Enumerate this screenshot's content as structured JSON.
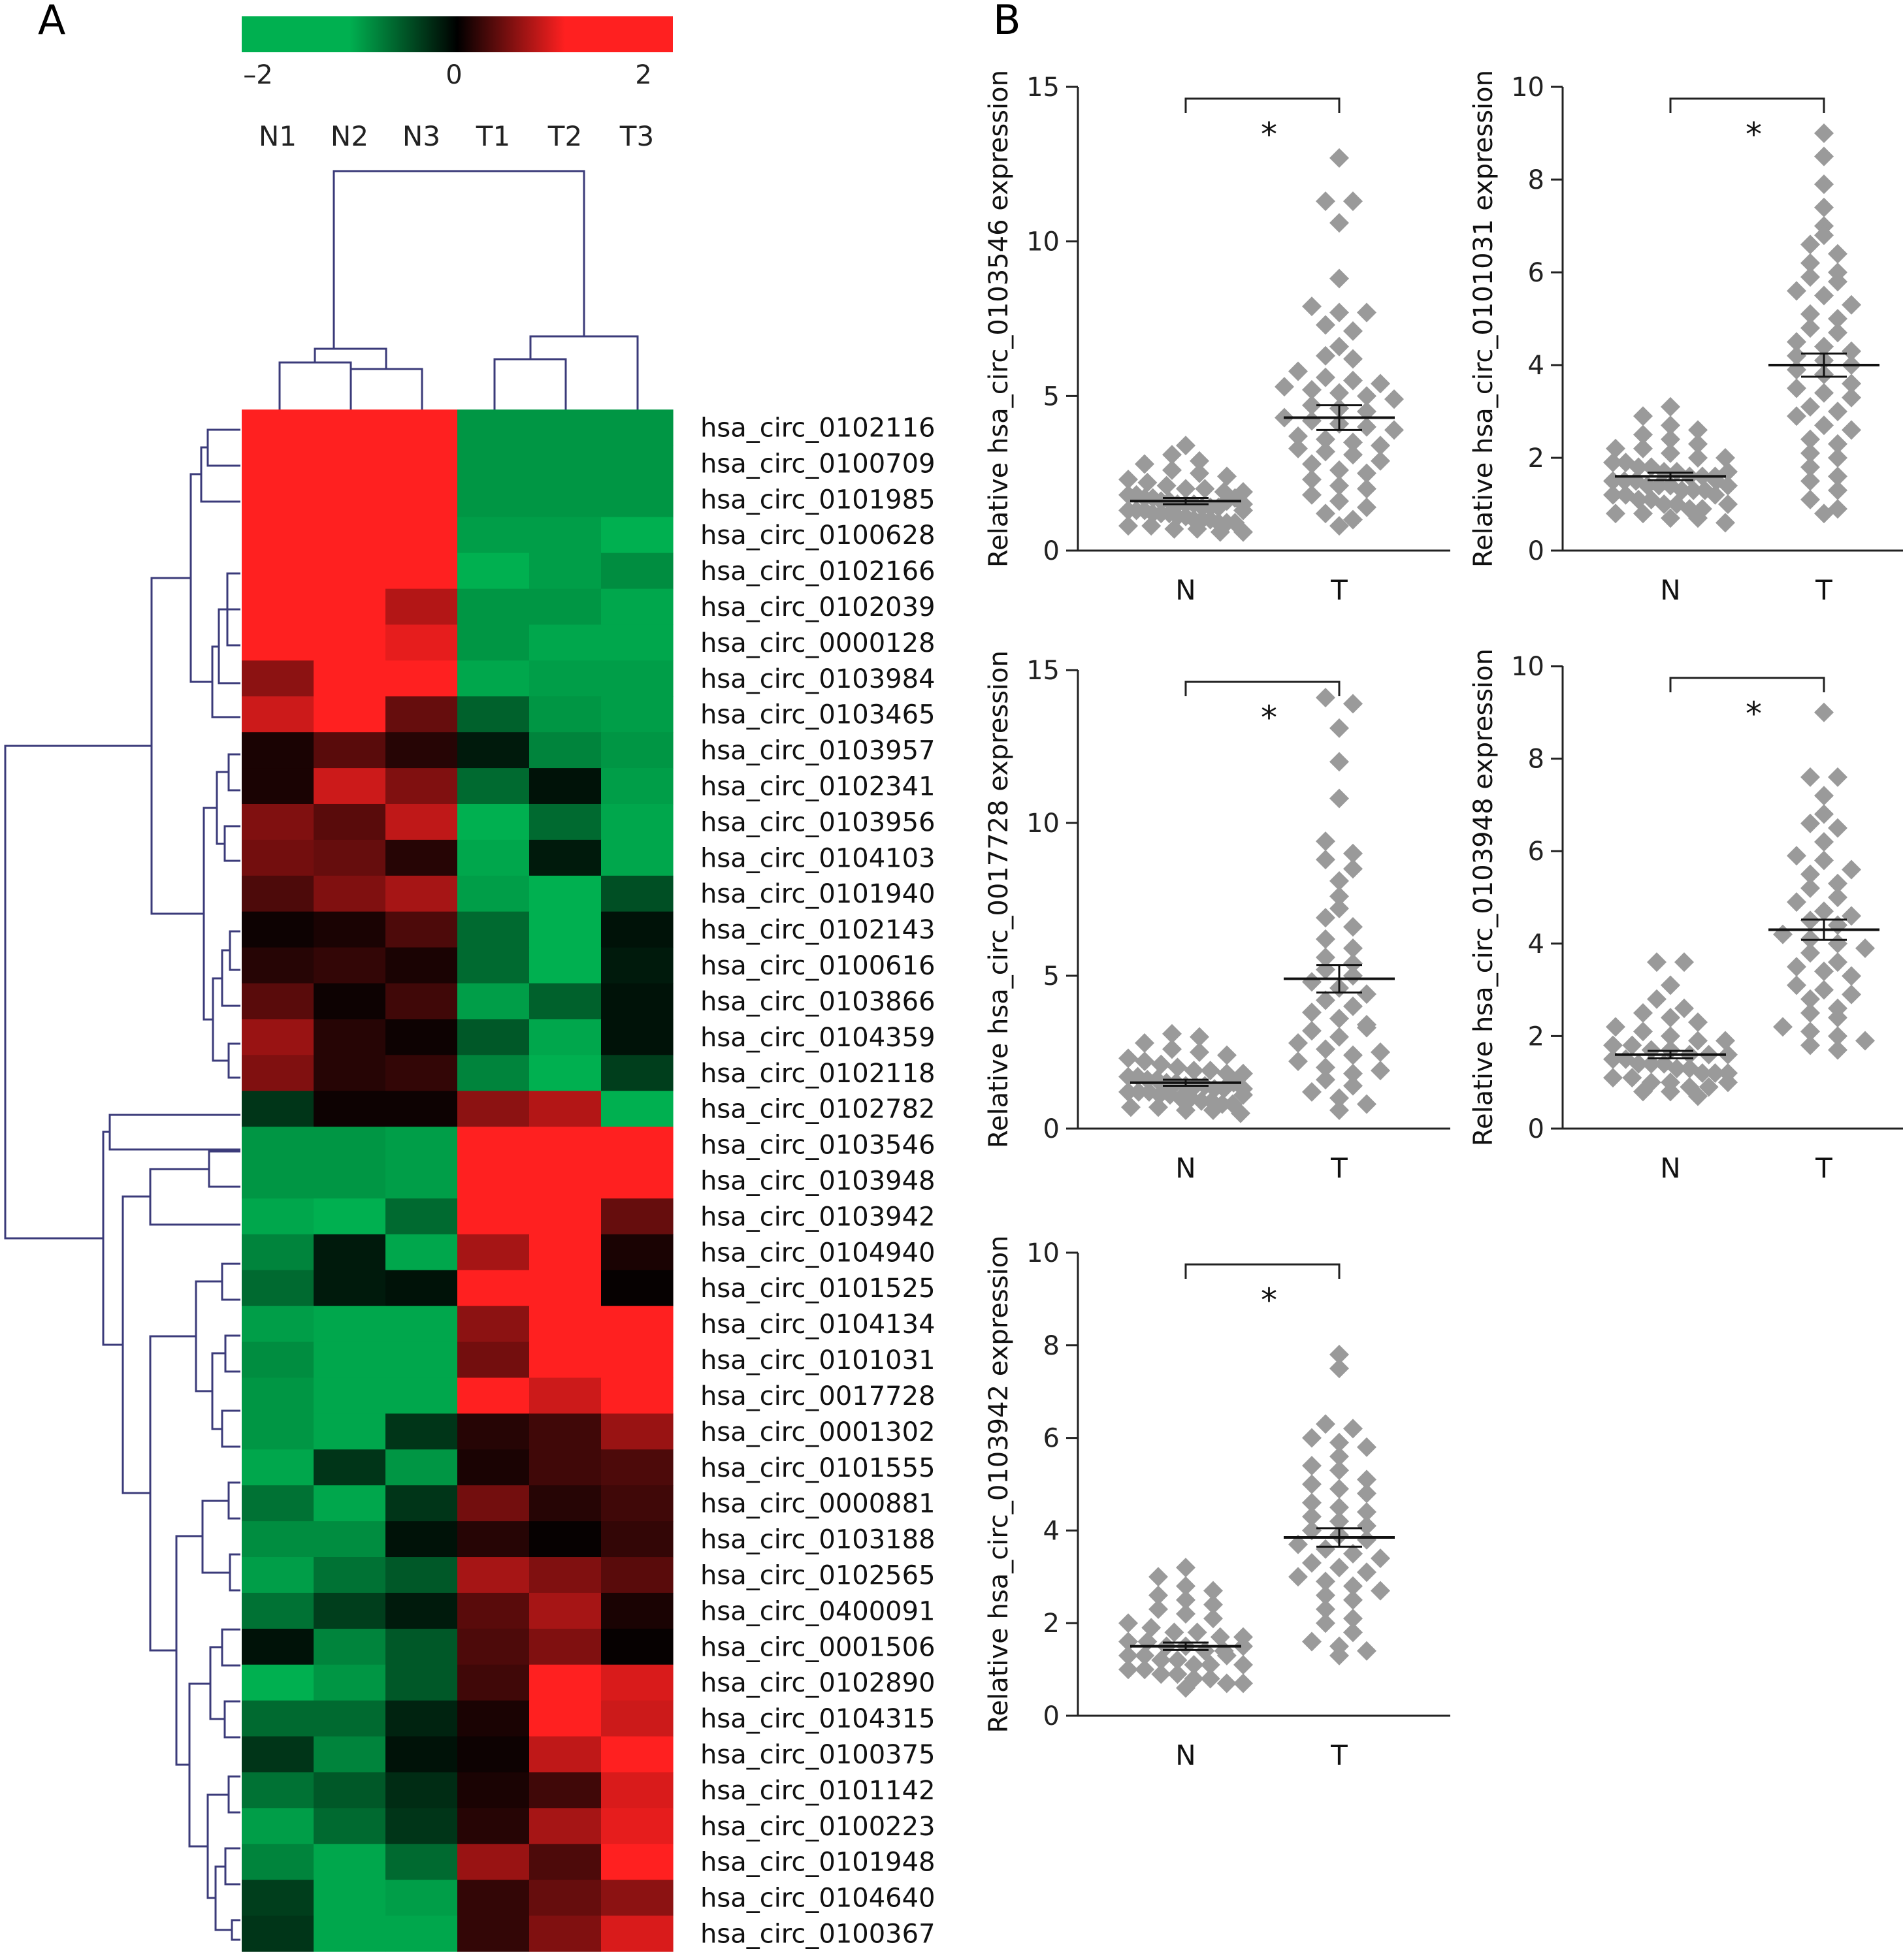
{
  "panels": {
    "a_label": "A",
    "b_label": "B"
  },
  "colors": {
    "low": "#00b050",
    "mid": "#000000",
    "high": "#ff2020",
    "dendrogram": "#3b3b7a",
    "points": "#9a9a9a"
  },
  "chart_data": [
    {
      "type": "heatmap",
      "panel": "A",
      "colorbar": {
        "range": [
          -2,
          2
        ],
        "ticks": [
          "–2",
          "0",
          "2"
        ]
      },
      "columns": [
        "N1",
        "N2",
        "N3",
        "T1",
        "T2",
        "T3"
      ],
      "rows": [
        "hsa_circ_0102116",
        "hsa_circ_0100709",
        "hsa_circ_0101985",
        "hsa_circ_0100628",
        "hsa_circ_0102166",
        "hsa_circ_0102039",
        "hsa_circ_0000128",
        "hsa_circ_0103984",
        "hsa_circ_0103465",
        "hsa_circ_0103957",
        "hsa_circ_0102341",
        "hsa_circ_0103956",
        "hsa_circ_0104103",
        "hsa_circ_0101940",
        "hsa_circ_0102143",
        "hsa_circ_0100616",
        "hsa_circ_0103866",
        "hsa_circ_0104359",
        "hsa_circ_0102118",
        "hsa_circ_0102782",
        "hsa_circ_0103546",
        "hsa_circ_0103948",
        "hsa_circ_0103942",
        "hsa_circ_0104940",
        "hsa_circ_0101525",
        "hsa_circ_0104134",
        "hsa_circ_0101031",
        "hsa_circ_0017728",
        "hsa_circ_0001302",
        "hsa_circ_0101555",
        "hsa_circ_0000881",
        "hsa_circ_0103188",
        "hsa_circ_0102565",
        "hsa_circ_0400091",
        "hsa_circ_0001506",
        "hsa_circ_0102890",
        "hsa_circ_0104315",
        "hsa_circ_0100375",
        "hsa_circ_0101142",
        "hsa_circ_0100223",
        "hsa_circ_0101948",
        "hsa_circ_0104640",
        "hsa_circ_0100367"
      ],
      "values": [
        [
          2,
          2,
          2,
          -1.7,
          -1.7,
          -1.7
        ],
        [
          2,
          2,
          2,
          -1.7,
          -1.7,
          -1.7
        ],
        [
          2,
          2,
          2,
          -1.7,
          -1.7,
          -1.7
        ],
        [
          2,
          2,
          2,
          -1.8,
          -1.8,
          -2
        ],
        [
          2,
          2,
          2,
          -2,
          -1.8,
          -1.6
        ],
        [
          2,
          2,
          1.4,
          -1.7,
          -1.7,
          -1.9
        ],
        [
          2,
          2,
          1.8,
          -1.7,
          -1.9,
          -1.9
        ],
        [
          1.1,
          2,
          2,
          -1.9,
          -1.8,
          -1.8
        ],
        [
          1.6,
          2,
          0.8,
          -1.1,
          -1.7,
          -1.8
        ],
        [
          0.2,
          0.7,
          0.3,
          -0.3,
          -1.5,
          -1.7
        ],
        [
          0.2,
          1.6,
          1,
          -1.2,
          -0.2,
          -1.8
        ],
        [
          1,
          0.7,
          1.5,
          -2,
          -1.2,
          -1.9
        ],
        [
          0.9,
          0.8,
          0.3,
          -1.9,
          -0.3,
          -1.9
        ],
        [
          0.6,
          1,
          1.3,
          -1.8,
          -2,
          -0.9
        ],
        [
          0.1,
          0.2,
          0.6,
          -1.2,
          -2,
          -0.2
        ],
        [
          0.3,
          0.4,
          0.2,
          -1.2,
          -2,
          -0.3
        ],
        [
          0.7,
          0.1,
          0.5,
          -1.8,
          -1.1,
          -0.2
        ],
        [
          1.2,
          0.3,
          0.1,
          -1,
          -1.9,
          -0.2
        ],
        [
          1,
          0.3,
          0.4,
          -1.5,
          -2,
          -0.7
        ],
        [
          -0.6,
          0.1,
          0.1,
          1.1,
          1.4,
          -2
        ],
        [
          -1.7,
          -1.7,
          -1.8,
          2,
          2,
          2
        ],
        [
          -1.7,
          -1.7,
          -1.8,
          2,
          2,
          2
        ],
        [
          -1.9,
          -2,
          -1.2,
          2,
          2,
          0.8
        ],
        [
          -1.5,
          -0.3,
          -1.9,
          1.3,
          2,
          0.2
        ],
        [
          -1.2,
          -0.3,
          -0.2,
          2,
          2,
          0.05
        ],
        [
          -1.8,
          -1.9,
          -1.9,
          1.1,
          2,
          2
        ],
        [
          -1.6,
          -1.9,
          -1.9,
          0.9,
          2,
          2
        ],
        [
          -1.7,
          -1.9,
          -1.9,
          2,
          1.6,
          2
        ],
        [
          -1.7,
          -1.9,
          -0.6,
          0.3,
          0.5,
          1.2
        ],
        [
          -1.9,
          -0.6,
          -1.7,
          0.2,
          0.5,
          0.6
        ],
        [
          -1.3,
          -1.9,
          -0.6,
          0.9,
          0.3,
          0.5
        ],
        [
          -1.6,
          -1.6,
          -0.2,
          0.3,
          0.05,
          0.4
        ],
        [
          -1.8,
          -1.3,
          -1,
          1.3,
          1,
          0.7
        ],
        [
          -1.3,
          -0.7,
          -0.3,
          0.7,
          1.3,
          0.2
        ],
        [
          -0.2,
          -1.5,
          -1,
          0.6,
          1,
          0.05
        ],
        [
          -2,
          -1.7,
          -1,
          0.5,
          2,
          1.7
        ],
        [
          -1.2,
          -1.2,
          -0.4,
          0.2,
          2,
          1.6
        ],
        [
          -0.6,
          -1.5,
          -0.2,
          0.1,
          1.5,
          2
        ],
        [
          -1.3,
          -1,
          -0.5,
          0.2,
          0.5,
          1.7
        ],
        [
          -1.8,
          -1.2,
          -0.6,
          0.3,
          1.3,
          1.8
        ],
        [
          -1.5,
          -1.9,
          -1.2,
          1.2,
          0.6,
          2
        ],
        [
          -0.7,
          -1.9,
          -1.8,
          0.4,
          0.8,
          1.1
        ],
        [
          -0.6,
          -1.9,
          -1.9,
          0.4,
          1,
          1.7
        ]
      ]
    },
    {
      "type": "scatter",
      "panel": "B",
      "categories": [
        "N",
        "T"
      ],
      "ylabel": "Relative hsa_circ_0103546 expression",
      "ylim": [
        0,
        15
      ],
      "yticks": [
        0,
        5,
        10,
        15
      ],
      "significance": "*",
      "series": [
        {
          "name": "N",
          "mean": 1.6,
          "sem": 0.1,
          "values": [
            3.4,
            3.1,
            2.9,
            2.8,
            2.6,
            2.5,
            2.4,
            2.3,
            2.2,
            2.1,
            2.0,
            2.0,
            1.9,
            1.9,
            1.8,
            1.8,
            1.7,
            1.7,
            1.6,
            1.6,
            1.5,
            1.5,
            1.5,
            1.4,
            1.4,
            1.4,
            1.3,
            1.3,
            1.3,
            1.2,
            1.2,
            1.2,
            1.1,
            1.1,
            1.0,
            1.0,
            1.0,
            0.9,
            0.9,
            0.9,
            0.8,
            0.8,
            0.7,
            0.7,
            0.6,
            0.6,
            1.6,
            1.7,
            1.5,
            1.3
          ]
        },
        {
          "name": "T",
          "mean": 4.3,
          "sem": 0.4,
          "values": [
            12.7,
            11.3,
            11.3,
            10.6,
            8.8,
            7.9,
            7.7,
            7.7,
            7.3,
            7.1,
            6.6,
            6.3,
            6.2,
            5.8,
            5.6,
            5.5,
            5.4,
            5.3,
            5.2,
            5.1,
            5.0,
            4.9,
            4.7,
            4.6,
            4.5,
            4.3,
            4.2,
            4.1,
            4.0,
            3.9,
            3.7,
            3.6,
            3.5,
            3.4,
            3.3,
            3.2,
            3.1,
            2.9,
            2.8,
            2.6,
            2.5,
            2.3,
            2.1,
            2.0,
            1.8,
            1.6,
            1.4,
            1.2,
            1.0,
            0.8
          ]
        }
      ]
    },
    {
      "type": "scatter",
      "panel": "B",
      "categories": [
        "N",
        "T"
      ],
      "ylabel": "Relative hsa_circ_0101031 expression",
      "ylim": [
        0,
        10
      ],
      "yticks": [
        0,
        2,
        4,
        6,
        8,
        10
      ],
      "significance": "*",
      "series": [
        {
          "name": "N",
          "mean": 1.6,
          "sem": 0.08,
          "values": [
            3.1,
            2.9,
            2.7,
            2.6,
            2.5,
            2.4,
            2.3,
            2.2,
            2.2,
            2.1,
            2.0,
            2.0,
            1.9,
            1.9,
            1.8,
            1.8,
            1.7,
            1.7,
            1.6,
            1.6,
            1.6,
            1.5,
            1.5,
            1.5,
            1.4,
            1.4,
            1.4,
            1.3,
            1.3,
            1.3,
            1.2,
            1.2,
            1.1,
            1.1,
            1.0,
            1.0,
            0.9,
            0.9,
            0.8,
            0.8,
            0.7,
            0.7,
            0.6,
            1.7,
            1.5,
            1.4,
            1.2,
            1.0
          ]
        },
        {
          "name": "T",
          "mean": 4.0,
          "sem": 0.25,
          "values": [
            9.0,
            8.5,
            7.9,
            7.4,
            7.0,
            6.8,
            6.6,
            6.4,
            6.2,
            6.0,
            5.9,
            5.8,
            5.6,
            5.5,
            5.3,
            5.1,
            5.0,
            4.8,
            4.7,
            4.5,
            4.4,
            4.3,
            4.2,
            4.1,
            4.0,
            3.9,
            3.8,
            3.6,
            3.5,
            3.4,
            3.3,
            3.1,
            3.0,
            2.9,
            2.7,
            2.6,
            2.4,
            2.3,
            2.1,
            2.0,
            1.8,
            1.6,
            1.5,
            1.3,
            1.1,
            0.9,
            0.8
          ]
        }
      ]
    },
    {
      "type": "scatter",
      "panel": "B",
      "categories": [
        "N",
        "T"
      ],
      "ylabel": "Relative hsa_circ_0017728 expression",
      "ylim": [
        0,
        15
      ],
      "yticks": [
        0,
        5,
        10,
        15
      ],
      "significance": "*",
      "series": [
        {
          "name": "N",
          "mean": 1.5,
          "sem": 0.1,
          "values": [
            3.1,
            3.0,
            2.8,
            2.6,
            2.5,
            2.4,
            2.3,
            2.2,
            2.1,
            2.0,
            1.9,
            1.9,
            1.8,
            1.8,
            1.7,
            1.7,
            1.6,
            1.6,
            1.5,
            1.5,
            1.4,
            1.4,
            1.4,
            1.3,
            1.3,
            1.2,
            1.2,
            1.2,
            1.1,
            1.1,
            1.0,
            1.0,
            0.9,
            0.9,
            0.8,
            0.8,
            0.7,
            0.7,
            0.6,
            0.6,
            0.5,
            1.5,
            1.3,
            1.1
          ]
        },
        {
          "name": "T",
          "mean": 4.9,
          "sem": 0.45,
          "values": [
            14.1,
            13.9,
            13.1,
            12.0,
            10.8,
            9.4,
            9.0,
            8.8,
            8.5,
            8.1,
            7.6,
            7.2,
            6.9,
            6.6,
            6.2,
            5.9,
            5.6,
            5.4,
            5.2,
            5.0,
            4.8,
            4.6,
            4.4,
            4.2,
            4.0,
            3.8,
            3.6,
            3.4,
            3.2,
            3.0,
            2.8,
            2.6,
            2.4,
            2.2,
            2.0,
            1.8,
            1.6,
            1.4,
            1.2,
            1.0,
            0.8,
            0.6,
            3.3,
            2.5,
            1.9
          ]
        }
      ]
    },
    {
      "type": "scatter",
      "panel": "B",
      "categories": [
        "N",
        "T"
      ],
      "ylabel": "Relative hsa_circ_0103948 expression",
      "ylim": [
        0,
        10
      ],
      "yticks": [
        0,
        2,
        4,
        6,
        8,
        10
      ],
      "significance": "*",
      "series": [
        {
          "name": "N",
          "mean": 1.6,
          "sem": 0.08,
          "values": [
            3.6,
            3.6,
            3.1,
            2.8,
            2.6,
            2.5,
            2.4,
            2.3,
            2.2,
            2.1,
            2.0,
            1.9,
            1.9,
            1.8,
            1.8,
            1.7,
            1.7,
            1.6,
            1.6,
            1.5,
            1.5,
            1.4,
            1.4,
            1.4,
            1.3,
            1.3,
            1.2,
            1.2,
            1.1,
            1.1,
            1.0,
            1.0,
            0.9,
            0.9,
            0.8,
            0.8,
            0.7,
            1.6,
            1.2,
            1.0
          ]
        },
        {
          "name": "T",
          "mean": 4.3,
          "sem": 0.22,
          "values": [
            9.0,
            7.6,
            7.6,
            7.2,
            6.8,
            6.6,
            6.5,
            6.2,
            5.9,
            5.8,
            5.6,
            5.5,
            5.3,
            5.2,
            5.0,
            4.9,
            4.7,
            4.6,
            4.5,
            4.4,
            4.2,
            4.1,
            4.0,
            3.9,
            3.8,
            3.6,
            3.5,
            3.4,
            3.3,
            3.1,
            3.0,
            2.9,
            2.8,
            2.6,
            2.5,
            2.4,
            2.2,
            2.1,
            2.0,
            1.9,
            1.8,
            1.7
          ]
        }
      ]
    },
    {
      "type": "scatter",
      "panel": "B",
      "categories": [
        "N",
        "T"
      ],
      "ylabel": "Relative hsa_circ_0103942 expression",
      "ylim": [
        0,
        10
      ],
      "yticks": [
        0,
        2,
        4,
        6,
        8,
        10
      ],
      "significance": "*",
      "series": [
        {
          "name": "N",
          "mean": 1.5,
          "sem": 0.08,
          "values": [
            3.2,
            3.0,
            2.8,
            2.7,
            2.6,
            2.5,
            2.4,
            2.3,
            2.2,
            2.1,
            2.0,
            1.9,
            1.8,
            1.8,
            1.7,
            1.7,
            1.6,
            1.6,
            1.5,
            1.5,
            1.4,
            1.4,
            1.3,
            1.3,
            1.2,
            1.2,
            1.1,
            1.1,
            1.0,
            1.0,
            0.9,
            0.9,
            0.8,
            0.8,
            0.7,
            0.7,
            0.6,
            1.5,
            1.3,
            1.1
          ]
        },
        {
          "name": "T",
          "mean": 3.85,
          "sem": 0.2,
          "values": [
            7.8,
            7.5,
            6.3,
            6.2,
            6.0,
            5.9,
            5.8,
            5.6,
            5.4,
            5.3,
            5.1,
            5.0,
            4.9,
            4.8,
            4.6,
            4.5,
            4.4,
            4.3,
            4.2,
            4.1,
            4.0,
            3.9,
            3.8,
            3.7,
            3.6,
            3.5,
            3.4,
            3.3,
            3.2,
            3.1,
            3.0,
            2.9,
            2.8,
            2.7,
            2.6,
            2.5,
            2.3,
            2.1,
            2.0,
            1.8,
            1.6,
            1.5,
            1.4,
            1.3
          ]
        }
      ]
    }
  ]
}
